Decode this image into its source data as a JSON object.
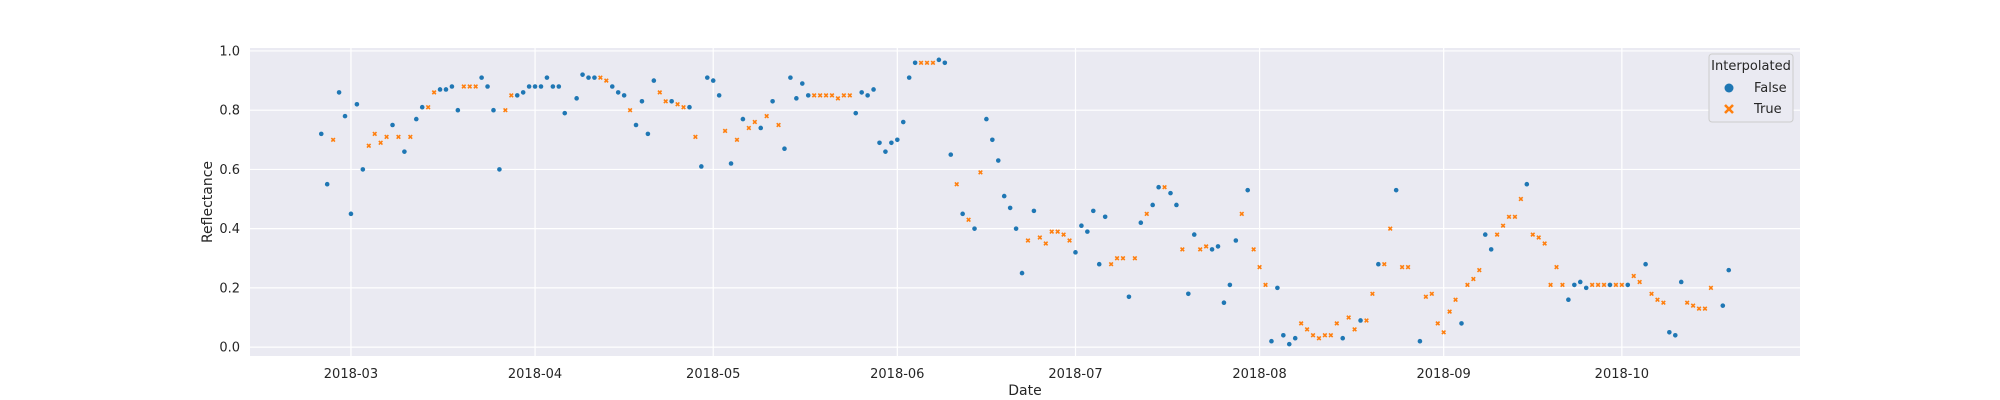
{
  "chart_data": {
    "type": "scatter",
    "title": "",
    "xlabel": "Date",
    "ylabel": "Reflectance",
    "x_ticks": [
      "2018-03",
      "2018-04",
      "2018-05",
      "2018-06",
      "2018-07",
      "2018-08",
      "2018-09",
      "2018-10"
    ],
    "xlim": [
      "2018-02-12",
      "2018-10-31"
    ],
    "y_ticks": [
      0.0,
      0.2,
      0.4,
      0.6,
      0.8,
      1.0
    ],
    "y_tick_labels": [
      "0.0",
      "0.2",
      "0.4",
      "0.6",
      "0.8",
      "1.0"
    ],
    "ylim": [
      -0.03,
      1.01
    ],
    "grid": true,
    "legend": {
      "title": "Interpolated",
      "placement": "top-right"
    },
    "series": [
      {
        "name": "False",
        "marker": "circle",
        "color": "#1f77b4",
        "points": [
          [
            "2018-02-24",
            0.72
          ],
          [
            "2018-02-25",
            0.55
          ],
          [
            "2018-02-27",
            0.86
          ],
          [
            "2018-02-28",
            0.78
          ],
          [
            "2018-03-01",
            0.45
          ],
          [
            "2018-03-02",
            0.82
          ],
          [
            "2018-03-03",
            0.6
          ],
          [
            "2018-03-08",
            0.75
          ],
          [
            "2018-03-10",
            0.66
          ],
          [
            "2018-03-12",
            0.77
          ],
          [
            "2018-03-13",
            0.81
          ],
          [
            "2018-03-16",
            0.87
          ],
          [
            "2018-03-17",
            0.87
          ],
          [
            "2018-03-18",
            0.88
          ],
          [
            "2018-03-19",
            0.8
          ],
          [
            "2018-03-23",
            0.91
          ],
          [
            "2018-03-24",
            0.88
          ],
          [
            "2018-03-25",
            0.8
          ],
          [
            "2018-03-26",
            0.6
          ],
          [
            "2018-03-29",
            0.85
          ],
          [
            "2018-03-30",
            0.86
          ],
          [
            "2018-03-31",
            0.88
          ],
          [
            "2018-04-01",
            0.88
          ],
          [
            "2018-04-02",
            0.88
          ],
          [
            "2018-04-03",
            0.91
          ],
          [
            "2018-04-04",
            0.88
          ],
          [
            "2018-04-05",
            0.88
          ],
          [
            "2018-04-06",
            0.79
          ],
          [
            "2018-04-08",
            0.84
          ],
          [
            "2018-04-09",
            0.92
          ],
          [
            "2018-04-10",
            0.91
          ],
          [
            "2018-04-11",
            0.91
          ],
          [
            "2018-04-14",
            0.88
          ],
          [
            "2018-04-15",
            0.86
          ],
          [
            "2018-04-16",
            0.85
          ],
          [
            "2018-04-18",
            0.75
          ],
          [
            "2018-04-19",
            0.83
          ],
          [
            "2018-04-20",
            0.72
          ],
          [
            "2018-04-21",
            0.9
          ],
          [
            "2018-04-24",
            0.83
          ],
          [
            "2018-04-27",
            0.81
          ],
          [
            "2018-04-29",
            0.61
          ],
          [
            "2018-04-30",
            0.91
          ],
          [
            "2018-05-01",
            0.9
          ],
          [
            "2018-05-02",
            0.85
          ],
          [
            "2018-05-04",
            0.62
          ],
          [
            "2018-05-06",
            0.77
          ],
          [
            "2018-05-09",
            0.74
          ],
          [
            "2018-05-11",
            0.83
          ],
          [
            "2018-05-13",
            0.67
          ],
          [
            "2018-05-14",
            0.91
          ],
          [
            "2018-05-15",
            0.84
          ],
          [
            "2018-05-16",
            0.89
          ],
          [
            "2018-05-17",
            0.85
          ],
          [
            "2018-05-25",
            0.79
          ],
          [
            "2018-05-26",
            0.86
          ],
          [
            "2018-05-27",
            0.85
          ],
          [
            "2018-05-28",
            0.87
          ],
          [
            "2018-05-29",
            0.69
          ],
          [
            "2018-05-30",
            0.66
          ],
          [
            "2018-05-31",
            0.69
          ],
          [
            "2018-06-01",
            0.7
          ],
          [
            "2018-06-02",
            0.76
          ],
          [
            "2018-06-03",
            0.91
          ],
          [
            "2018-06-04",
            0.96
          ],
          [
            "2018-06-08",
            0.97
          ],
          [
            "2018-06-09",
            0.96
          ],
          [
            "2018-06-10",
            0.65
          ],
          [
            "2018-06-12",
            0.45
          ],
          [
            "2018-06-14",
            0.4
          ],
          [
            "2018-06-16",
            0.77
          ],
          [
            "2018-06-17",
            0.7
          ],
          [
            "2018-06-18",
            0.63
          ],
          [
            "2018-06-19",
            0.51
          ],
          [
            "2018-06-20",
            0.47
          ],
          [
            "2018-06-21",
            0.4
          ],
          [
            "2018-06-22",
            0.25
          ],
          [
            "2018-06-24",
            0.46
          ],
          [
            "2018-07-01",
            0.32
          ],
          [
            "2018-07-02",
            0.41
          ],
          [
            "2018-07-03",
            0.39
          ],
          [
            "2018-07-04",
            0.46
          ],
          [
            "2018-07-05",
            0.28
          ],
          [
            "2018-07-06",
            0.44
          ],
          [
            "2018-07-10",
            0.17
          ],
          [
            "2018-07-12",
            0.42
          ],
          [
            "2018-07-14",
            0.48
          ],
          [
            "2018-07-15",
            0.54
          ],
          [
            "2018-07-17",
            0.52
          ],
          [
            "2018-07-18",
            0.48
          ],
          [
            "2018-07-20",
            0.18
          ],
          [
            "2018-07-21",
            0.38
          ],
          [
            "2018-07-24",
            0.33
          ],
          [
            "2018-07-25",
            0.34
          ],
          [
            "2018-07-26",
            0.15
          ],
          [
            "2018-07-27",
            0.21
          ],
          [
            "2018-07-28",
            0.36
          ],
          [
            "2018-07-30",
            0.53
          ],
          [
            "2018-08-03",
            0.02
          ],
          [
            "2018-08-04",
            0.2
          ],
          [
            "2018-08-05",
            0.04
          ],
          [
            "2018-08-06",
            0.01
          ],
          [
            "2018-08-07",
            0.03
          ],
          [
            "2018-08-15",
            0.03
          ],
          [
            "2018-08-18",
            0.09
          ],
          [
            "2018-08-21",
            0.28
          ],
          [
            "2018-08-24",
            0.53
          ],
          [
            "2018-08-28",
            0.02
          ],
          [
            "2018-09-04",
            0.08
          ],
          [
            "2018-09-08",
            0.38
          ],
          [
            "2018-09-09",
            0.33
          ],
          [
            "2018-09-15",
            0.55
          ],
          [
            "2018-09-22",
            0.16
          ],
          [
            "2018-09-23",
            0.21
          ],
          [
            "2018-09-24",
            0.22
          ],
          [
            "2018-09-25",
            0.2
          ],
          [
            "2018-09-29",
            0.21
          ],
          [
            "2018-10-02",
            0.21
          ],
          [
            "2018-10-05",
            0.28
          ],
          [
            "2018-10-09",
            0.05
          ],
          [
            "2018-10-10",
            0.04
          ],
          [
            "2018-10-11",
            0.22
          ],
          [
            "2018-10-18",
            0.14
          ],
          [
            "2018-10-19",
            0.26
          ]
        ]
      },
      {
        "name": "True",
        "marker": "x",
        "color": "#ff7f0e",
        "points": [
          [
            "2018-02-26",
            0.7
          ],
          [
            "2018-03-04",
            0.68
          ],
          [
            "2018-03-05",
            0.72
          ],
          [
            "2018-03-06",
            0.69
          ],
          [
            "2018-03-07",
            0.71
          ],
          [
            "2018-03-09",
            0.71
          ],
          [
            "2018-03-11",
            0.71
          ],
          [
            "2018-03-14",
            0.81
          ],
          [
            "2018-03-15",
            0.86
          ],
          [
            "2018-03-20",
            0.88
          ],
          [
            "2018-03-21",
            0.88
          ],
          [
            "2018-03-22",
            0.88
          ],
          [
            "2018-03-27",
            0.8
          ],
          [
            "2018-03-28",
            0.85
          ],
          [
            "2018-04-12",
            0.91
          ],
          [
            "2018-04-13",
            0.9
          ],
          [
            "2018-04-17",
            0.8
          ],
          [
            "2018-04-22",
            0.86
          ],
          [
            "2018-04-23",
            0.83
          ],
          [
            "2018-04-25",
            0.82
          ],
          [
            "2018-04-26",
            0.81
          ],
          [
            "2018-04-28",
            0.71
          ],
          [
            "2018-05-03",
            0.73
          ],
          [
            "2018-05-05",
            0.7
          ],
          [
            "2018-05-07",
            0.74
          ],
          [
            "2018-05-08",
            0.76
          ],
          [
            "2018-05-10",
            0.78
          ],
          [
            "2018-05-12",
            0.75
          ],
          [
            "2018-05-18",
            0.85
          ],
          [
            "2018-05-19",
            0.85
          ],
          [
            "2018-05-20",
            0.85
          ],
          [
            "2018-05-21",
            0.85
          ],
          [
            "2018-05-22",
            0.84
          ],
          [
            "2018-05-23",
            0.85
          ],
          [
            "2018-05-24",
            0.85
          ],
          [
            "2018-06-05",
            0.96
          ],
          [
            "2018-06-06",
            0.96
          ],
          [
            "2018-06-07",
            0.96
          ],
          [
            "2018-06-11",
            0.55
          ],
          [
            "2018-06-13",
            0.43
          ],
          [
            "2018-06-15",
            0.59
          ],
          [
            "2018-06-23",
            0.36
          ],
          [
            "2018-06-25",
            0.37
          ],
          [
            "2018-06-26",
            0.35
          ],
          [
            "2018-06-27",
            0.39
          ],
          [
            "2018-06-28",
            0.39
          ],
          [
            "2018-06-29",
            0.38
          ],
          [
            "2018-06-30",
            0.36
          ],
          [
            "2018-07-07",
            0.28
          ],
          [
            "2018-07-08",
            0.3
          ],
          [
            "2018-07-09",
            0.3
          ],
          [
            "2018-07-11",
            0.3
          ],
          [
            "2018-07-13",
            0.45
          ],
          [
            "2018-07-16",
            0.54
          ],
          [
            "2018-07-19",
            0.33
          ],
          [
            "2018-07-22",
            0.33
          ],
          [
            "2018-07-23",
            0.34
          ],
          [
            "2018-07-29",
            0.45
          ],
          [
            "2018-07-31",
            0.33
          ],
          [
            "2018-08-01",
            0.27
          ],
          [
            "2018-08-02",
            0.21
          ],
          [
            "2018-08-08",
            0.08
          ],
          [
            "2018-08-09",
            0.06
          ],
          [
            "2018-08-10",
            0.04
          ],
          [
            "2018-08-11",
            0.03
          ],
          [
            "2018-08-12",
            0.04
          ],
          [
            "2018-08-13",
            0.04
          ],
          [
            "2018-08-14",
            0.08
          ],
          [
            "2018-08-16",
            0.1
          ],
          [
            "2018-08-17",
            0.06
          ],
          [
            "2018-08-19",
            0.09
          ],
          [
            "2018-08-20",
            0.18
          ],
          [
            "2018-08-22",
            0.28
          ],
          [
            "2018-08-23",
            0.4
          ],
          [
            "2018-08-25",
            0.27
          ],
          [
            "2018-08-26",
            0.27
          ],
          [
            "2018-08-29",
            0.17
          ],
          [
            "2018-08-30",
            0.18
          ],
          [
            "2018-08-31",
            0.08
          ],
          [
            "2018-09-01",
            0.05
          ],
          [
            "2018-09-02",
            0.12
          ],
          [
            "2018-09-03",
            0.16
          ],
          [
            "2018-09-05",
            0.21
          ],
          [
            "2018-09-06",
            0.23
          ],
          [
            "2018-09-07",
            0.26
          ],
          [
            "2018-09-10",
            0.38
          ],
          [
            "2018-09-11",
            0.41
          ],
          [
            "2018-09-12",
            0.44
          ],
          [
            "2018-09-13",
            0.44
          ],
          [
            "2018-09-14",
            0.5
          ],
          [
            "2018-09-16",
            0.38
          ],
          [
            "2018-09-17",
            0.37
          ],
          [
            "2018-09-18",
            0.35
          ],
          [
            "2018-09-19",
            0.21
          ],
          [
            "2018-09-20",
            0.27
          ],
          [
            "2018-09-21",
            0.21
          ],
          [
            "2018-09-26",
            0.21
          ],
          [
            "2018-09-27",
            0.21
          ],
          [
            "2018-09-28",
            0.21
          ],
          [
            "2018-09-30",
            0.21
          ],
          [
            "2018-10-01",
            0.21
          ],
          [
            "2018-10-03",
            0.24
          ],
          [
            "2018-10-04",
            0.22
          ],
          [
            "2018-10-06",
            0.18
          ],
          [
            "2018-10-07",
            0.16
          ],
          [
            "2018-10-08",
            0.15
          ],
          [
            "2018-10-12",
            0.15
          ],
          [
            "2018-10-13",
            0.14
          ],
          [
            "2018-10-14",
            0.13
          ],
          [
            "2018-10-15",
            0.13
          ],
          [
            "2018-10-16",
            0.2
          ]
        ]
      }
    ]
  }
}
